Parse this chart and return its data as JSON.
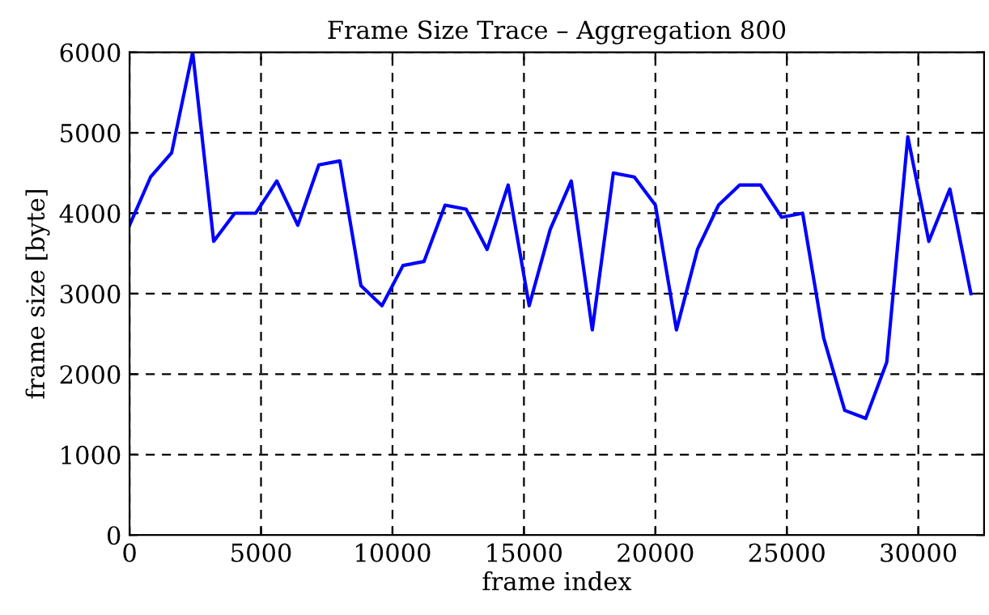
{
  "chart_data": {
    "type": "line",
    "title": "Frame Size Trace – Aggregation 800",
    "xlabel": "frame index",
    "ylabel": "frame size [byte]",
    "x": [
      0,
      800,
      1600,
      2400,
      3200,
      4000,
      4800,
      5600,
      6400,
      7200,
      8000,
      8800,
      9600,
      10400,
      11200,
      12000,
      12800,
      13600,
      14400,
      15200,
      16000,
      16800,
      17600,
      18400,
      19200,
      20000,
      20800,
      21600,
      22400,
      23200,
      24000,
      24800,
      25600,
      26400,
      27200,
      28000,
      28800,
      29600,
      30400,
      31200,
      32000
    ],
    "series": [
      {
        "color": "#0000ff",
        "values": [
          3850,
          4450,
          4750,
          6000,
          3650,
          4000,
          4000,
          4400,
          3850,
          4600,
          4650,
          3100,
          2850,
          3350,
          3400,
          4100,
          4050,
          3550,
          4350,
          2850,
          3800,
          4400,
          2550,
          4500,
          4450,
          4100,
          2550,
          3550,
          4100,
          4350,
          4350,
          3950,
          4000,
          2450,
          1550,
          1450,
          2150,
          4950,
          3650,
          4300,
          3000
        ]
      }
    ],
    "xlim": [
      0,
      32500
    ],
    "ylim": [
      0,
      6000
    ],
    "xticks": [
      0,
      5000,
      10000,
      15000,
      20000,
      25000,
      30000
    ],
    "yticks": [
      0,
      1000,
      2000,
      3000,
      4000,
      5000,
      6000
    ],
    "grid": true,
    "line_style": "solid",
    "marker": "none",
    "legend": false
  }
}
